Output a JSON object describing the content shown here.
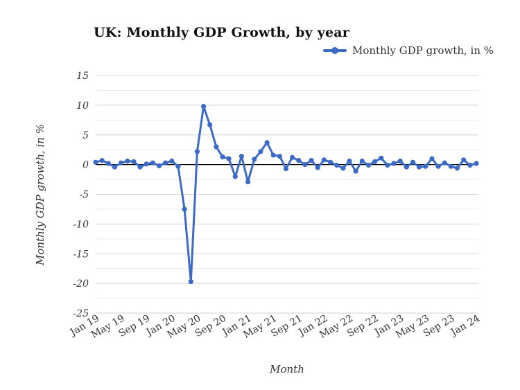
{
  "chart": {
    "title": "UK: Monthly GDP Growth, by year",
    "legend_label": "Monthly GDP growth, in %",
    "x_axis_title": "Month",
    "y_axis_title": "Monthly GDP growth, in %"
  },
  "style": {
    "line_color": "#3c6ac4",
    "marker_color": "#3c6ac4",
    "zero_line_color": "#000000",
    "grid_major_color": "#d2d2d2",
    "grid_minor_color": "#e9e9e9",
    "text_color": "#333333",
    "title_color": "#111111",
    "background_color": "#ffffff"
  },
  "chart_data": {
    "type": "line",
    "title": "UK: Monthly GDP Growth, by year",
    "xlabel": "Month",
    "ylabel": "Monthly GDP growth, in %",
    "legend": [
      "Monthly GDP growth, in %"
    ],
    "legend_position": "top-right",
    "grid": true,
    "ylim": [
      -25,
      15
    ],
    "y_major_ticks": [
      15,
      10,
      5,
      0,
      -5,
      -10,
      -15,
      -20,
      -25
    ],
    "y_minor_step": 2.5,
    "x_tick_labels": [
      "Jan 19",
      "May 19",
      "Sep 19",
      "Jan 20",
      "May 20",
      "Sep 20",
      "Jan 21",
      "May 21",
      "Sep 21",
      "Jan 22",
      "May 22",
      "Sep 22",
      "Jan 23",
      "May 23",
      "Sep 23",
      "Jan 24"
    ],
    "x_tick_every": 4,
    "x": [
      "Jan 19",
      "Feb 19",
      "Mar 19",
      "Apr 19",
      "May 19",
      "Jun 19",
      "Jul 19",
      "Aug 19",
      "Sep 19",
      "Oct 19",
      "Nov 19",
      "Dec 19",
      "Jan 20",
      "Feb 20",
      "Mar 20",
      "Apr 20",
      "May 20",
      "Jun 20",
      "Jul 20",
      "Aug 20",
      "Sep 20",
      "Oct 20",
      "Nov 20",
      "Dec 20",
      "Jan 21",
      "Feb 21",
      "Mar 21",
      "Apr 21",
      "May 21",
      "Jun 21",
      "Jul 21",
      "Aug 21",
      "Sep 21",
      "Oct 21",
      "Nov 21",
      "Dec 21",
      "Jan 22",
      "Feb 22",
      "Mar 22",
      "Apr 22",
      "May 22",
      "Jun 22",
      "Jul 22",
      "Aug 22",
      "Sep 22",
      "Oct 22",
      "Nov 22",
      "Dec 22",
      "Jan 23",
      "Feb 23",
      "Mar 23",
      "Apr 23",
      "May 23",
      "Jun 23",
      "Jul 23",
      "Aug 23",
      "Sep 23",
      "Oct 23",
      "Nov 23",
      "Dec 23",
      "Jan 24"
    ],
    "series": [
      {
        "name": "Monthly GDP growth, in %",
        "color": "#3c6ac4",
        "values": [
          0.4,
          0.7,
          0.2,
          -0.4,
          0.3,
          0.6,
          0.5,
          -0.4,
          0.1,
          0.3,
          -0.2,
          0.3,
          0.6,
          -0.3,
          -7.5,
          -19.7,
          2.2,
          9.8,
          6.7,
          3.0,
          1.3,
          1.0,
          -2.0,
          1.4,
          -2.9,
          0.9,
          2.2,
          3.7,
          1.6,
          1.4,
          -0.7,
          1.2,
          0.7,
          0.0,
          0.7,
          -0.5,
          0.8,
          0.4,
          -0.1,
          -0.6,
          0.6,
          -1.1,
          0.6,
          -0.1,
          0.5,
          1.1,
          -0.1,
          0.2,
          0.6,
          -0.4,
          0.4,
          -0.4,
          -0.3,
          1.0,
          -0.3,
          0.3,
          -0.3,
          -0.6,
          0.8,
          -0.1,
          0.2
        ]
      }
    ]
  }
}
